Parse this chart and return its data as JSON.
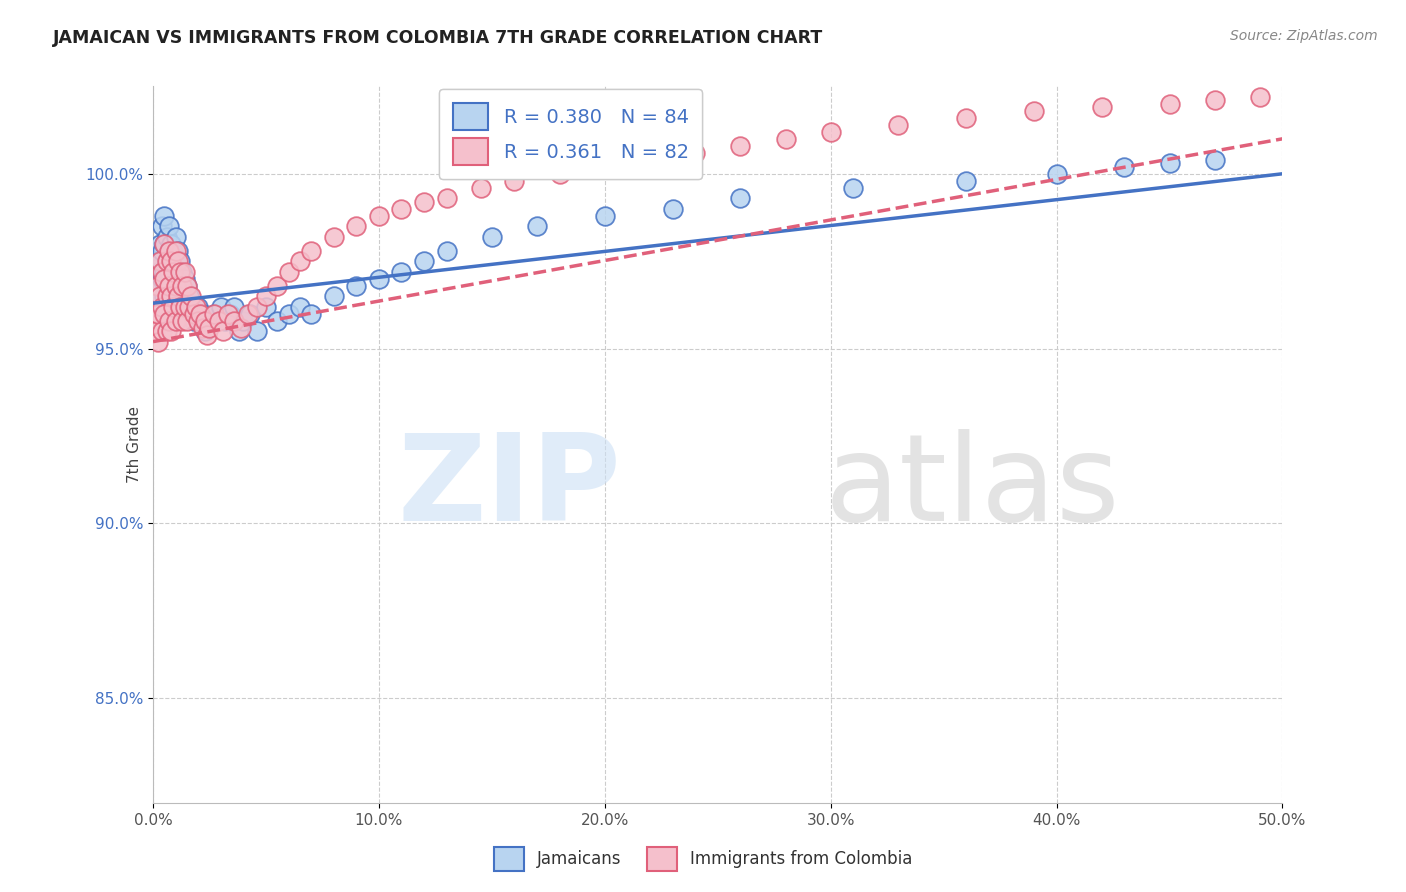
{
  "title": "JAMAICAN VS IMMIGRANTS FROM COLOMBIA 7TH GRADE CORRELATION CHART",
  "source": "Source: ZipAtlas.com",
  "ylabel": "7th Grade",
  "blue_label": "Jamaicans",
  "pink_label": "Immigrants from Colombia",
  "legend_blue_r": "R = 0.380",
  "legend_blue_n": "N = 84",
  "legend_pink_r": "R = 0.361",
  "legend_pink_n": "N = 82",
  "blue_face": "#b8d4f0",
  "blue_edge": "#4472c4",
  "pink_face": "#f5c0cc",
  "pink_edge": "#e0607a",
  "blue_line": "#4472c4",
  "pink_line": "#e0607a",
  "grid_color": "#cccccc",
  "xmin": 0.0,
  "xmax": 0.5,
  "ymin": 0.82,
  "ymax": 1.025,
  "yticks": [
    0.85,
    0.9,
    0.95,
    1.0
  ],
  "yticklabels": [
    "85.0%",
    "90.0%",
    "95.0%",
    "100.0%"
  ],
  "xticks": [
    0.0,
    0.1,
    0.2,
    0.3,
    0.4,
    0.5
  ],
  "xticklabels": [
    "0.0%",
    "10.0%",
    "20.0%",
    "30.0%",
    "40.0%",
    "50.0%"
  ],
  "blue_x": [
    0.001,
    0.001,
    0.002,
    0.002,
    0.002,
    0.003,
    0.003,
    0.003,
    0.004,
    0.004,
    0.004,
    0.005,
    0.005,
    0.005,
    0.005,
    0.005,
    0.006,
    0.006,
    0.006,
    0.006,
    0.007,
    0.007,
    0.007,
    0.007,
    0.008,
    0.008,
    0.008,
    0.008,
    0.009,
    0.009,
    0.009,
    0.01,
    0.01,
    0.01,
    0.011,
    0.011,
    0.012,
    0.012,
    0.013,
    0.013,
    0.014,
    0.014,
    0.015,
    0.015,
    0.016,
    0.017,
    0.018,
    0.019,
    0.02,
    0.021,
    0.022,
    0.023,
    0.025,
    0.027,
    0.03,
    0.032,
    0.034,
    0.036,
    0.038,
    0.04,
    0.043,
    0.046,
    0.05,
    0.055,
    0.06,
    0.065,
    0.07,
    0.08,
    0.09,
    0.1,
    0.11,
    0.12,
    0.13,
    0.15,
    0.17,
    0.2,
    0.23,
    0.26,
    0.31,
    0.36,
    0.4,
    0.43,
    0.45,
    0.47
  ],
  "blue_y": [
    0.97,
    0.965,
    0.978,
    0.972,
    0.968,
    0.98,
    0.975,
    0.968,
    0.985,
    0.978,
    0.97,
    0.988,
    0.98,
    0.972,
    0.965,
    0.96,
    0.982,
    0.975,
    0.968,
    0.962,
    0.985,
    0.978,
    0.972,
    0.965,
    0.98,
    0.975,
    0.968,
    0.96,
    0.978,
    0.972,
    0.965,
    0.982,
    0.975,
    0.968,
    0.978,
    0.97,
    0.975,
    0.968,
    0.972,
    0.965,
    0.97,
    0.963,
    0.968,
    0.961,
    0.965,
    0.962,
    0.958,
    0.96,
    0.962,
    0.958,
    0.96,
    0.955,
    0.958,
    0.96,
    0.962,
    0.958,
    0.96,
    0.962,
    0.955,
    0.958,
    0.96,
    0.955,
    0.962,
    0.958,
    0.96,
    0.962,
    0.96,
    0.965,
    0.968,
    0.97,
    0.972,
    0.975,
    0.978,
    0.982,
    0.985,
    0.988,
    0.99,
    0.993,
    0.996,
    0.998,
    1.0,
    1.002,
    1.003,
    1.004
  ],
  "pink_x": [
    0.001,
    0.001,
    0.002,
    0.002,
    0.002,
    0.003,
    0.003,
    0.004,
    0.004,
    0.004,
    0.005,
    0.005,
    0.005,
    0.006,
    0.006,
    0.006,
    0.007,
    0.007,
    0.007,
    0.008,
    0.008,
    0.008,
    0.009,
    0.009,
    0.01,
    0.01,
    0.01,
    0.011,
    0.011,
    0.012,
    0.012,
    0.013,
    0.013,
    0.014,
    0.014,
    0.015,
    0.015,
    0.016,
    0.017,
    0.018,
    0.019,
    0.02,
    0.021,
    0.022,
    0.023,
    0.024,
    0.025,
    0.027,
    0.029,
    0.031,
    0.033,
    0.036,
    0.039,
    0.042,
    0.046,
    0.05,
    0.055,
    0.06,
    0.065,
    0.07,
    0.08,
    0.09,
    0.1,
    0.11,
    0.12,
    0.13,
    0.145,
    0.16,
    0.18,
    0.2,
    0.22,
    0.24,
    0.26,
    0.28,
    0.3,
    0.33,
    0.36,
    0.39,
    0.42,
    0.45,
    0.47,
    0.49
  ],
  "pink_y": [
    0.96,
    0.955,
    0.968,
    0.96,
    0.952,
    0.975,
    0.965,
    0.972,
    0.962,
    0.955,
    0.98,
    0.97,
    0.96,
    0.975,
    0.965,
    0.955,
    0.978,
    0.968,
    0.958,
    0.975,
    0.965,
    0.955,
    0.972,
    0.962,
    0.978,
    0.968,
    0.958,
    0.975,
    0.965,
    0.972,
    0.962,
    0.968,
    0.958,
    0.972,
    0.962,
    0.968,
    0.958,
    0.962,
    0.965,
    0.96,
    0.962,
    0.958,
    0.96,
    0.956,
    0.958,
    0.954,
    0.956,
    0.96,
    0.958,
    0.955,
    0.96,
    0.958,
    0.956,
    0.96,
    0.962,
    0.965,
    0.968,
    0.972,
    0.975,
    0.978,
    0.982,
    0.985,
    0.988,
    0.99,
    0.992,
    0.993,
    0.996,
    0.998,
    1.0,
    1.002,
    1.004,
    1.006,
    1.008,
    1.01,
    1.012,
    1.014,
    1.016,
    1.018,
    1.019,
    1.02,
    1.021,
    1.022
  ]
}
